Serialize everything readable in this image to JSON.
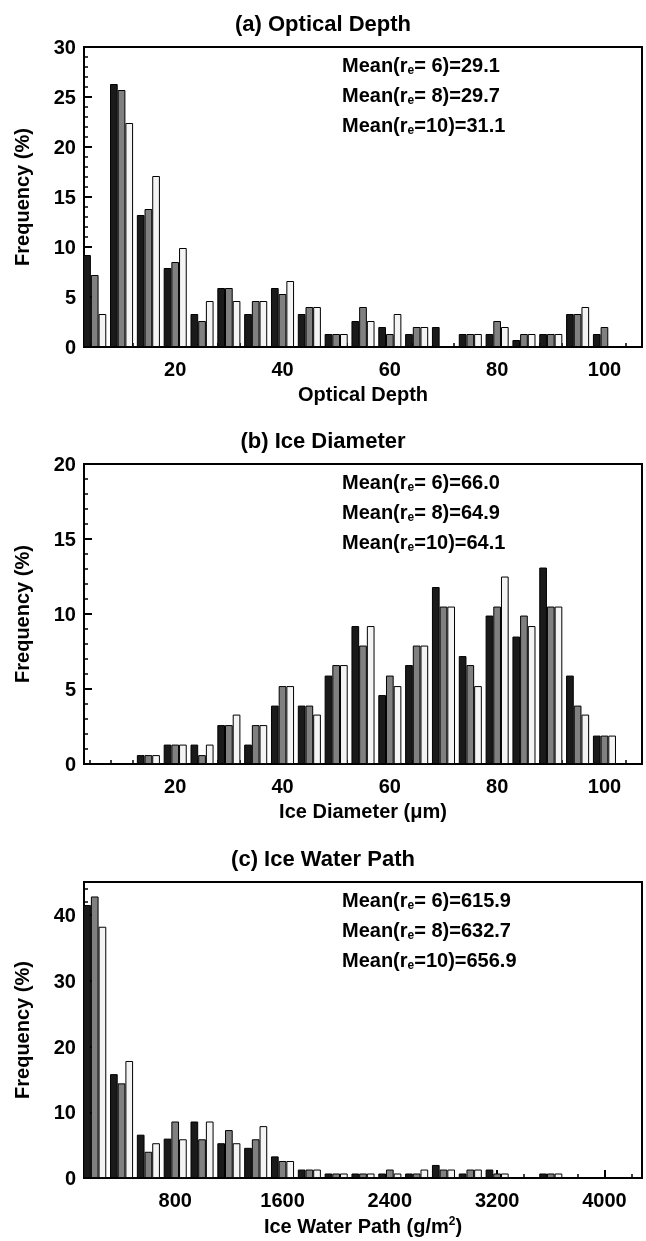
{
  "chart_data": [
    {
      "type": "bar",
      "title": "(a) Optical Depth",
      "xlabel": "Optical Depth",
      "ylabel": "Frequency (%)",
      "x": [
        5,
        10,
        15,
        20,
        25,
        30,
        35,
        40,
        45,
        50,
        55,
        60,
        65,
        70,
        75,
        80,
        85,
        90,
        95,
        100
      ],
      "xlim": [
        3,
        107
      ],
      "xticks": [
        20,
        40,
        60,
        80,
        100
      ],
      "ylim": [
        0,
        30
      ],
      "yticks": [
        0,
        5,
        10,
        15,
        20,
        25,
        30
      ],
      "grid": false,
      "annotations": [
        "Mean(r$_{e}$= 6)=29.1",
        "Mean(r$_{e}$= 8)=29.7",
        "Mean(r$_{e}$=10)=31.1"
      ],
      "series": [
        {
          "color": "#1a1a1a",
          "values": [
            9.2,
            26.3,
            13.2,
            7.9,
            3.3,
            5.9,
            3.3,
            5.9,
            3.3,
            1.3,
            2.6,
            2.0,
            1.3,
            2.0,
            1.3,
            1.3,
            0.7,
            1.3,
            3.3,
            1.3
          ]
        },
        {
          "color": "#808080",
          "values": [
            7.2,
            25.7,
            13.8,
            8.5,
            2.6,
            5.9,
            4.6,
            5.3,
            4.0,
            1.3,
            4.0,
            1.3,
            2.0,
            0,
            1.3,
            2.6,
            1.3,
            1.3,
            3.3,
            2.0
          ]
        },
        {
          "color": "#f4f4f4",
          "values": [
            3.3,
            22.4,
            17.1,
            9.9,
            4.6,
            4.6,
            4.6,
            6.6,
            4.0,
            1.3,
            2.6,
            3.3,
            2.0,
            0,
            1.3,
            2.0,
            1.3,
            1.3,
            4.0,
            0
          ]
        }
      ]
    },
    {
      "type": "bar",
      "title": "(b) Ice Diameter",
      "xlabel": "Ice Diameter (μm)",
      "ylabel": "Frequency (%)",
      "x": [
        15,
        20,
        25,
        30,
        35,
        40,
        45,
        50,
        55,
        60,
        65,
        70,
        75,
        80,
        85,
        90,
        95,
        100
      ],
      "xlim": [
        3,
        107
      ],
      "xticks": [
        20,
        40,
        60,
        80,
        100
      ],
      "ylim": [
        0,
        20
      ],
      "yticks": [
        0,
        5,
        10,
        15,
        20
      ],
      "grid": false,
      "annotations": [
        "Mean(r$_{e}$= 6)=66.0",
        "Mean(r$_{e}$= 8)=64.9",
        "Mean(r$_{e}$=10)=64.1"
      ],
      "series": [
        {
          "color": "#1a1a1a",
          "values": [
            0.6,
            1.3,
            1.3,
            2.6,
            1.3,
            3.9,
            3.9,
            5.9,
            9.2,
            4.6,
            6.6,
            11.8,
            7.2,
            9.9,
            8.5,
            13.1,
            5.9,
            1.9
          ]
        },
        {
          "color": "#808080",
          "values": [
            0.6,
            1.3,
            0.6,
            2.6,
            2.6,
            5.2,
            3.9,
            6.6,
            7.9,
            5.9,
            7.9,
            10.5,
            6.6,
            10.5,
            9.9,
            10.5,
            3.9,
            1.9
          ]
        },
        {
          "color": "#f4f4f4",
          "values": [
            0.6,
            1.3,
            1.3,
            3.3,
            2.6,
            5.2,
            3.3,
            6.6,
            9.2,
            5.2,
            7.9,
            10.5,
            5.2,
            12.5,
            9.2,
            10.5,
            3.3,
            1.9
          ]
        }
      ]
    },
    {
      "type": "bar",
      "title": "(c) Ice Water Path",
      "xlabel": "Ice Water Path (g/m$^{2}$)",
      "ylabel": "Frequency (%)",
      "x": [
        200,
        400,
        600,
        800,
        1000,
        1200,
        1400,
        1600,
        1800,
        2000,
        2200,
        2400,
        2600,
        2800,
        3000,
        3200,
        3400,
        3600
      ],
      "xlim": [
        120,
        4280
      ],
      "xticks": [
        800,
        1600,
        2400,
        3200,
        4000
      ],
      "ylim": [
        0,
        45
      ],
      "yticks": [
        0,
        10,
        20,
        30,
        40
      ],
      "grid": false,
      "annotations": [
        "Mean(r$_{e}$= 6)=615.9",
        "Mean(r$_{e}$= 8)=632.7",
        "Mean(r$_{e}$=10)=656.9"
      ],
      "series": [
        {
          "color": "#1a1a1a",
          "values": [
            41.5,
            15.8,
            6.6,
            6.0,
            8.6,
            5.3,
            4.6,
            3.3,
            1.3,
            0.7,
            0.7,
            0.7,
            0.7,
            2.0,
            0.7,
            1.3,
            0,
            0.7
          ]
        },
        {
          "color": "#808080",
          "values": [
            42.8,
            14.4,
            4.0,
            8.6,
            5.9,
            7.3,
            5.9,
            2.6,
            1.3,
            0.7,
            0.7,
            1.3,
            0.7,
            1.3,
            1.3,
            0.7,
            0,
            0.7
          ]
        },
        {
          "color": "#f4f4f4",
          "values": [
            38.2,
            17.8,
            5.3,
            5.9,
            8.6,
            5.3,
            7.9,
            2.6,
            1.3,
            0.7,
            0.7,
            0.7,
            1.3,
            1.3,
            1.3,
            0.7,
            0,
            0.7
          ]
        }
      ]
    }
  ]
}
